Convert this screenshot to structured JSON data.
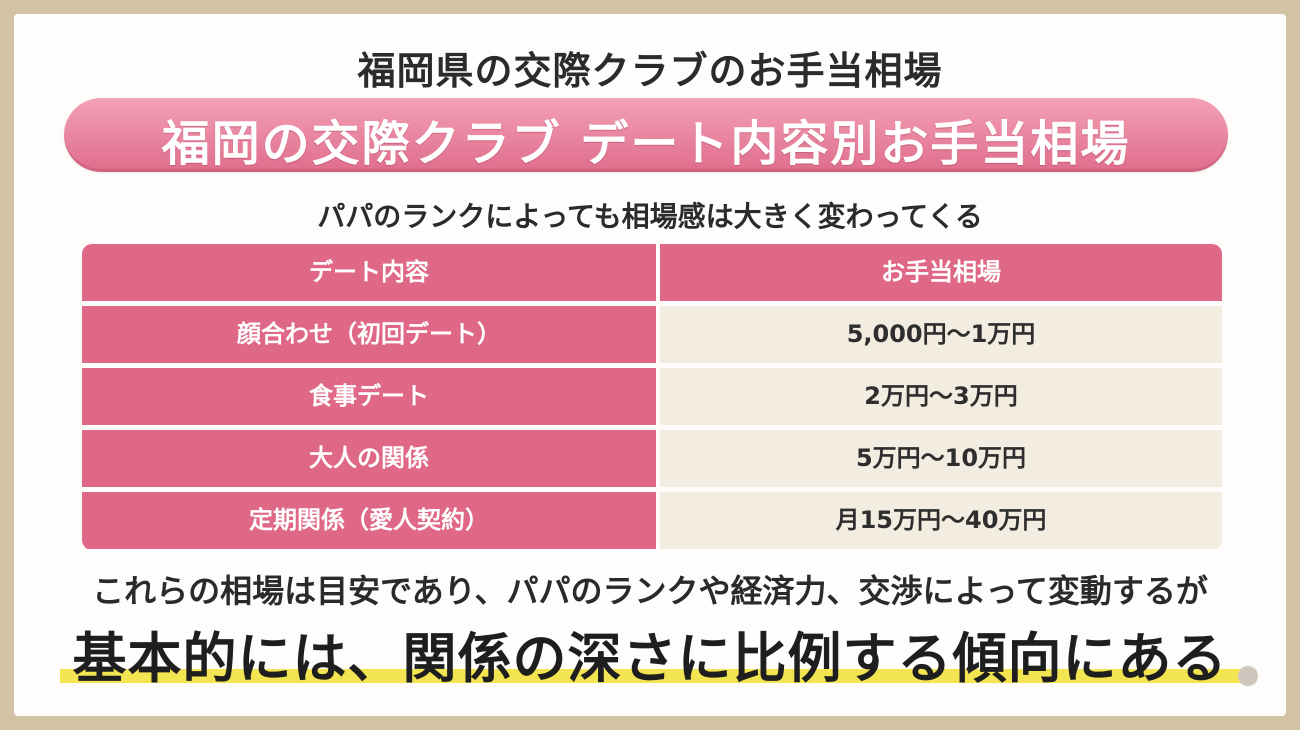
{
  "title": "福岡県の交際クラブのお手当相場",
  "banner": "福岡の交際クラブ デート内容別お手当相場",
  "subtitle": "パパのランクによっても相場感は大きく変わってくる",
  "table": {
    "headers": [
      "デート内容",
      "お手当相場"
    ],
    "rows": [
      {
        "date": "顔合わせ（初回デート）",
        "price": "5,000円〜1万円"
      },
      {
        "date": "食事デート",
        "price": "2万円〜3万円"
      },
      {
        "date": "大人の関係",
        "price": "5万円〜10万円"
      },
      {
        "date": "定期関係（愛人契約）",
        "price": "月15万円〜40万円"
      }
    ]
  },
  "note": "これらの相場は目安であり、パパのランクや経済力、交渉によって変動するが",
  "emphasis": "基本的には、関係の深さに比例する傾向にある",
  "colors": {
    "accent_pink": "#e06887",
    "cell_beige": "#f2ede0",
    "highlight_yellow": "#f3e452",
    "frame": "#d2c3a5"
  }
}
